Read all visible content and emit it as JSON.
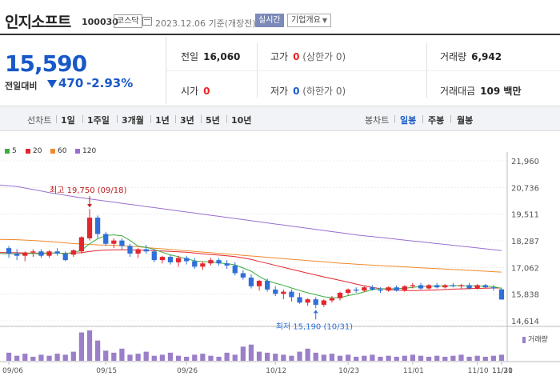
{
  "header": {
    "name": "인지소프트",
    "code": "100030",
    "market": "코스닥",
    "date_text": "2023.12.06 기준(개장전)",
    "realtime_label": "실시간",
    "company_label": "기업개요"
  },
  "price": {
    "current": "15,590",
    "change_label": "전일대비",
    "change_value": "470",
    "change_pct": "-2.93%",
    "direction": "down",
    "color": "#1858c8"
  },
  "stats": {
    "prev_label": "전일",
    "prev_value": "16,060",
    "high_label": "고가",
    "high_value": "0",
    "high_sub": "(상한가 0)",
    "volume_label": "거래량",
    "volume_value": "6,942",
    "open_label": "시가",
    "open_value": "0",
    "low_label": "저가",
    "low_value": "0",
    "low_sub": "(하한가 0)",
    "amount_label": "거래대금",
    "amount_value": "109 백만"
  },
  "tabs": {
    "line_label": "선차트",
    "line_tabs": [
      "1일",
      "1주일",
      "3개월",
      "1년",
      "3년",
      "5년",
      "10년"
    ],
    "candle_label": "봉차트",
    "candle_tabs": [
      "일봉",
      "주봉",
      "월봉"
    ],
    "active_candle": "일봉"
  },
  "colors": {
    "up": "#e3262e",
    "down": "#2f6fd8",
    "ma5": "#3cae3c",
    "ma20": "#e3262e",
    "ma60": "#f08a2c",
    "ma120": "#9b6fd0",
    "volume": "#9b7fc8"
  },
  "chart_data": {
    "type": "candlestick",
    "legend": [
      "5",
      "20",
      "60",
      "120"
    ],
    "y_ticks": [
      "21,960",
      "20,736",
      "19,511",
      "18,287",
      "17,062",
      "15,838",
      "14,614"
    ],
    "y_range": [
      14614,
      21960
    ],
    "x_ticks": [
      "09/06",
      "09/15",
      "09/26",
      "10/12",
      "10/23",
      "11/01",
      "11/10",
      "11/21",
      "11/30"
    ],
    "annotations": {
      "high_text": "최고 19,750 (09/18)",
      "low_text": "최저 15,190 (10/31)"
    },
    "volume_label": "거래량",
    "candles": [
      [
        17950,
        18050,
        17500,
        17700
      ],
      [
        17700,
        17900,
        17400,
        17600
      ],
      [
        17600,
        17800,
        17350,
        17750
      ],
      [
        17750,
        17900,
        17550,
        17800
      ],
      [
        17800,
        17900,
        17500,
        17600
      ],
      [
        17600,
        17850,
        17500,
        17800
      ],
      [
        17800,
        17950,
        17600,
        17700
      ],
      [
        17700,
        17800,
        17350,
        17400
      ],
      [
        17650,
        17900,
        17550,
        17850
      ],
      [
        17800,
        18500,
        17700,
        18450
      ],
      [
        18400,
        19750,
        18300,
        19350
      ],
      [
        19350,
        19450,
        18400,
        18600
      ],
      [
        18600,
        18700,
        18050,
        18150
      ],
      [
        18150,
        18400,
        17950,
        18300
      ],
      [
        18300,
        18400,
        17900,
        18050
      ],
      [
        18050,
        18150,
        17550,
        17700
      ],
      [
        17700,
        17950,
        17500,
        17900
      ],
      [
        17900,
        18100,
        17700,
        17800
      ],
      [
        17800,
        17900,
        17300,
        17400
      ],
      [
        17400,
        17600,
        17250,
        17550
      ],
      [
        17550,
        17650,
        17200,
        17300
      ],
      [
        17300,
        17600,
        17100,
        17500
      ],
      [
        17500,
        17600,
        17200,
        17350
      ],
      [
        17350,
        17500,
        17000,
        17100
      ],
      [
        17100,
        17350,
        16950,
        17250
      ],
      [
        17250,
        17500,
        17150,
        17400
      ],
      [
        17400,
        17500,
        17150,
        17250
      ],
      [
        17250,
        17400,
        17000,
        17150
      ],
      [
        17150,
        17300,
        16700,
        16800
      ],
      [
        16800,
        16950,
        16500,
        16600
      ],
      [
        16600,
        16750,
        16100,
        16200
      ],
      [
        16200,
        16500,
        16000,
        16450
      ],
      [
        16450,
        16550,
        15950,
        16050
      ],
      [
        16050,
        16200,
        15750,
        15850
      ],
      [
        15850,
        16050,
        15600,
        15950
      ],
      [
        15950,
        16050,
        15500,
        15700
      ],
      [
        15700,
        15900,
        15400,
        15450
      ],
      [
        15450,
        15650,
        15300,
        15600
      ],
      [
        15600,
        15700,
        15190,
        15350
      ],
      [
        15350,
        15600,
        15250,
        15550
      ],
      [
        15550,
        15750,
        15450,
        15650
      ],
      [
        15650,
        15950,
        15550,
        15900
      ],
      [
        15900,
        16100,
        15800,
        16050
      ],
      [
        16050,
        16150,
        15900,
        16000
      ],
      [
        16000,
        16200,
        15950,
        16150
      ],
      [
        16150,
        16250,
        16000,
        16050
      ],
      [
        16050,
        16150,
        15900,
        16000
      ],
      [
        16000,
        16200,
        15950,
        16150
      ],
      [
        16150,
        16250,
        15950,
        16000
      ],
      [
        16000,
        16250,
        15950,
        16200
      ],
      [
        16200,
        16350,
        16100,
        16250
      ],
      [
        16250,
        16350,
        16050,
        16100
      ],
      [
        16100,
        16300,
        16050,
        16250
      ],
      [
        16250,
        16350,
        16100,
        16150
      ],
      [
        16150,
        16300,
        16100,
        16250
      ],
      [
        16250,
        16350,
        16150,
        16200
      ],
      [
        16200,
        16300,
        16100,
        16250
      ],
      [
        16250,
        16350,
        16050,
        16100
      ],
      [
        16100,
        16300,
        16050,
        16250
      ],
      [
        16250,
        16300,
        16100,
        16150
      ],
      [
        16150,
        16250,
        16000,
        16100
      ],
      [
        16060,
        16100,
        15590,
        15590
      ]
    ],
    "volumes": [
      8,
      5,
      7,
      4,
      6,
      5,
      7,
      6,
      9,
      28,
      30,
      20,
      10,
      8,
      12,
      6,
      7,
      9,
      5,
      6,
      8,
      5,
      4,
      6,
      7,
      5,
      4,
      8,
      6,
      14,
      16,
      9,
      8,
      7,
      6,
      5,
      9,
      12,
      8,
      6,
      7,
      5,
      6,
      4,
      5,
      6,
      4,
      5,
      4,
      5,
      6,
      5,
      4,
      5,
      4,
      5,
      6,
      4,
      5,
      4,
      5,
      6
    ],
    "ma5": [
      17700,
      17690,
      17700,
      17710,
      17690,
      17720,
      17730,
      17700,
      17750,
      17850,
      18150,
      18380,
      18530,
      18560,
      18520,
      18300,
      18040,
      17990,
      17890,
      17760,
      17640,
      17560,
      17460,
      17370,
      17330,
      17320,
      17270,
      17240,
      17180,
      17040,
      16890,
      16650,
      16450,
      16340,
      16240,
      16120,
      16010,
      15900,
      15810,
      15720,
      15670,
      15680,
      15770,
      15840,
      15940,
      16040,
      16090,
      16080,
      16090,
      16110,
      16150,
      16190,
      16200,
      16210,
      16220,
      16220,
      16230,
      16220,
      16210,
      16200,
      16180,
      16100
    ],
    "ma20": [
      17750,
      17740,
      17730,
      17720,
      17720,
      17720,
      17720,
      17710,
      17720,
      17740,
      17800,
      17840,
      17860,
      17870,
      17880,
      17870,
      17860,
      17850,
      17840,
      17820,
      17800,
      17780,
      17760,
      17730,
      17690,
      17660,
      17630,
      17600,
      17560,
      17500,
      17430,
      17340,
      17250,
      17160,
      17070,
      16980,
      16890,
      16800,
      16720,
      16630,
      16550,
      16470,
      16390,
      16300,
      16220,
      16150,
      16090,
      16050,
      16020,
      16010,
      16000,
      16010,
      16020,
      16030,
      16050,
      16070,
      16080,
      16090,
      16100,
      16110,
      16120,
      16120
    ],
    "ma60": [
      18350,
      18340,
      18320,
      18300,
      18280,
      18250,
      18220,
      18190,
      18160,
      18140,
      18120,
      18100,
      18090,
      18080,
      18060,
      18040,
      18010,
      17980,
      17950,
      17920,
      17890,
      17860,
      17830,
      17800,
      17770,
      17740,
      17710,
      17680,
      17650,
      17620,
      17590,
      17560,
      17530,
      17500,
      17470,
      17440,
      17410,
      17380,
      17350,
      17320,
      17290,
      17260,
      17240,
      17210,
      17190,
      17170,
      17150,
      17130,
      17110,
      17090,
      17070,
      17050,
      17030,
      17010,
      16990,
      16970,
      16950,
      16930,
      16910,
      16890,
      16870,
      16850
    ],
    "ma120": [
      20850,
      20780,
      20710,
      20640,
      20570,
      20500,
      20440,
      20380,
      20320,
      20260,
      20210,
      20160,
      20110,
      20060,
      20010,
      19960,
      19910,
      19860,
      19810,
      19760,
      19710,
      19660,
      19610,
      19560,
      19510,
      19460,
      19410,
      19360,
      19310,
      19260,
      19210,
      19160,
      19110,
      19060,
      19010,
      18960,
      18910,
      18860,
      18810,
      18760,
      18710,
      18660,
      18610,
      18560,
      18520,
      18480,
      18440,
      18400,
      18360,
      18320,
      18280,
      18240,
      18200,
      18160,
      18120,
      18080,
      18040,
      18000,
      17960,
      17920,
      17880,
      17840
    ]
  }
}
